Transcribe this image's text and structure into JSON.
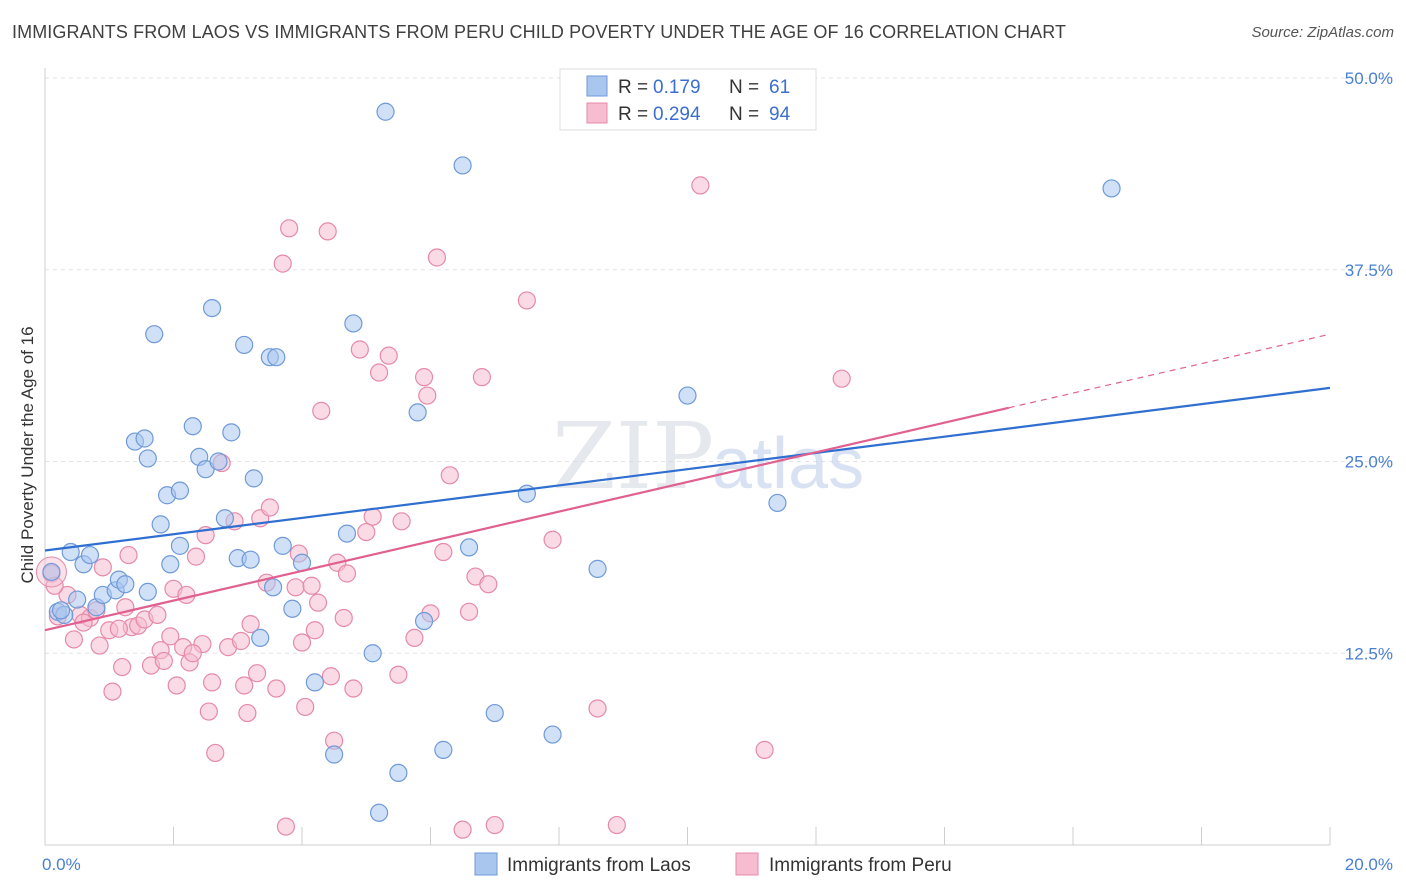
{
  "title": "IMMIGRANTS FROM LAOS VS IMMIGRANTS FROM PERU CHILD POVERTY UNDER THE AGE OF 16 CORRELATION CHART",
  "source": "Source: ZipAtlas.com",
  "watermark": {
    "a": "ZIP",
    "b": "atlas"
  },
  "colors": {
    "laos_fill": "#a9c6ef",
    "laos_stroke": "#6f9ad8",
    "laos_line": "#2f6fd0",
    "peru_fill": "#f6bcd0",
    "peru_stroke": "#e58aa9",
    "peru_line": "#e0608f",
    "grid": "#e3e3e3",
    "axis_text": "#4a7fd1"
  },
  "legend": {
    "laos": {
      "r_label": "R =",
      "r_value": "0.179",
      "n_label": "N =",
      "n_value": "61"
    },
    "peru": {
      "r_label": "R =",
      "r_value": "0.294",
      "n_label": "N =",
      "n_value": "94"
    }
  },
  "chart_data": {
    "type": "scatter",
    "xlabel": "",
    "ylabel": "Child Poverty Under the Age of 16",
    "xlim": [
      0,
      20
    ],
    "ylim": [
      0,
      50
    ],
    "x_tick_labels": [
      {
        "value": 0,
        "label": "0.0%"
      },
      {
        "value": 20,
        "label": "20.0%"
      }
    ],
    "y_tick_labels": [
      {
        "value": 12.5,
        "label": "12.5%"
      },
      {
        "value": 25,
        "label": "25.0%"
      },
      {
        "value": 37.5,
        "label": "37.5%"
      },
      {
        "value": 50,
        "label": "50.0%"
      }
    ],
    "legend_position": "top-center",
    "grid": true,
    "series": [
      {
        "name": "Immigrants from Laos",
        "trend": {
          "x0": 0,
          "y0": 19.2,
          "x1": 20,
          "y1": 29.8
        },
        "points": [
          [
            0.1,
            17.8
          ],
          [
            0.2,
            15.2
          ],
          [
            0.3,
            15.0
          ],
          [
            0.4,
            19.1
          ],
          [
            0.5,
            16.0
          ],
          [
            0.6,
            18.3
          ],
          [
            0.7,
            18.9
          ],
          [
            0.8,
            15.5
          ],
          [
            0.9,
            16.3
          ],
          [
            1.1,
            16.6
          ],
          [
            1.15,
            17.3
          ],
          [
            1.25,
            17.0
          ],
          [
            1.4,
            26.3
          ],
          [
            1.55,
            26.5
          ],
          [
            1.6,
            25.2
          ],
          [
            1.6,
            16.5
          ],
          [
            1.7,
            33.3
          ],
          [
            1.8,
            20.9
          ],
          [
            1.9,
            22.8
          ],
          [
            1.95,
            18.3
          ],
          [
            2.1,
            23.1
          ],
          [
            2.1,
            19.5
          ],
          [
            2.3,
            27.3
          ],
          [
            2.4,
            25.3
          ],
          [
            2.5,
            24.5
          ],
          [
            2.6,
            35.0
          ],
          [
            2.7,
            25.0
          ],
          [
            2.8,
            21.3
          ],
          [
            2.9,
            26.9
          ],
          [
            3.0,
            18.7
          ],
          [
            3.1,
            32.6
          ],
          [
            3.2,
            18.6
          ],
          [
            3.25,
            23.9
          ],
          [
            3.35,
            13.5
          ],
          [
            3.5,
            31.8
          ],
          [
            3.55,
            16.8
          ],
          [
            3.6,
            31.8
          ],
          [
            3.7,
            19.5
          ],
          [
            3.85,
            15.4
          ],
          [
            4.0,
            18.4
          ],
          [
            4.2,
            10.6
          ],
          [
            4.5,
            5.9
          ],
          [
            4.7,
            20.3
          ],
          [
            4.8,
            34.0
          ],
          [
            5.1,
            12.5
          ],
          [
            5.2,
            2.1
          ],
          [
            5.3,
            47.8
          ],
          [
            5.5,
            4.7
          ],
          [
            5.8,
            28.2
          ],
          [
            5.9,
            14.6
          ],
          [
            6.2,
            6.2
          ],
          [
            6.5,
            44.3
          ],
          [
            6.6,
            19.4
          ],
          [
            7.0,
            8.6
          ],
          [
            7.5,
            22.9
          ],
          [
            7.9,
            7.2
          ],
          [
            8.6,
            18.0
          ],
          [
            10.0,
            29.3
          ],
          [
            11.4,
            22.3
          ],
          [
            16.6,
            42.8
          ],
          [
            0.25,
            15.3
          ]
        ]
      },
      {
        "name": "Immigrants from Peru",
        "trend": {
          "x0": 0,
          "y0": 14.0,
          "x1": 15.0,
          "y1": 28.5,
          "dash_x1": 20,
          "dash_y1": 33.3
        },
        "points": [
          [
            0.1,
            17.7
          ],
          [
            0.2,
            14.9
          ],
          [
            0.35,
            16.3
          ],
          [
            0.45,
            13.4
          ],
          [
            0.55,
            15.0
          ],
          [
            0.7,
            14.8
          ],
          [
            0.8,
            15.3
          ],
          [
            0.85,
            13.0
          ],
          [
            0.9,
            18.1
          ],
          [
            1.0,
            14.0
          ],
          [
            1.05,
            10.0
          ],
          [
            1.2,
            11.6
          ],
          [
            1.25,
            15.5
          ],
          [
            1.3,
            18.9
          ],
          [
            1.35,
            14.2
          ],
          [
            1.45,
            14.3
          ],
          [
            1.55,
            14.7
          ],
          [
            1.65,
            11.7
          ],
          [
            1.75,
            15.0
          ],
          [
            1.8,
            12.7
          ],
          [
            1.85,
            12.0
          ],
          [
            1.95,
            13.6
          ],
          [
            2.0,
            16.7
          ],
          [
            2.05,
            10.4
          ],
          [
            2.15,
            12.9
          ],
          [
            2.2,
            16.3
          ],
          [
            2.25,
            11.9
          ],
          [
            2.35,
            18.8
          ],
          [
            2.45,
            13.1
          ],
          [
            2.5,
            20.2
          ],
          [
            2.55,
            8.7
          ],
          [
            2.6,
            10.6
          ],
          [
            2.65,
            6.0
          ],
          [
            2.75,
            24.9
          ],
          [
            2.85,
            12.9
          ],
          [
            2.95,
            21.1
          ],
          [
            3.05,
            13.3
          ],
          [
            3.1,
            10.4
          ],
          [
            3.15,
            8.6
          ],
          [
            3.2,
            14.4
          ],
          [
            3.3,
            11.2
          ],
          [
            3.35,
            21.3
          ],
          [
            3.45,
            17.1
          ],
          [
            3.5,
            22.0
          ],
          [
            3.6,
            10.2
          ],
          [
            3.7,
            37.9
          ],
          [
            3.75,
            1.2
          ],
          [
            3.8,
            40.2
          ],
          [
            3.9,
            16.8
          ],
          [
            4.0,
            13.2
          ],
          [
            4.05,
            9.0
          ],
          [
            4.15,
            16.9
          ],
          [
            4.2,
            14.0
          ],
          [
            4.25,
            15.8
          ],
          [
            4.3,
            28.3
          ],
          [
            4.4,
            40.0
          ],
          [
            4.45,
            11.0
          ],
          [
            4.5,
            6.8
          ],
          [
            4.55,
            18.4
          ],
          [
            4.7,
            17.7
          ],
          [
            4.8,
            10.2
          ],
          [
            4.9,
            32.3
          ],
          [
            5.0,
            20.4
          ],
          [
            5.1,
            21.4
          ],
          [
            5.2,
            30.8
          ],
          [
            5.35,
            31.9
          ],
          [
            5.5,
            11.1
          ],
          [
            5.55,
            21.1
          ],
          [
            5.9,
            30.5
          ],
          [
            5.95,
            29.3
          ],
          [
            6.0,
            15.1
          ],
          [
            6.1,
            38.3
          ],
          [
            6.2,
            19.1
          ],
          [
            6.3,
            24.1
          ],
          [
            6.5,
            1.0
          ],
          [
            6.6,
            15.2
          ],
          [
            6.7,
            17.5
          ],
          [
            6.8,
            30.5
          ],
          [
            6.9,
            17.0
          ],
          [
            7.0,
            1.3
          ],
          [
            7.5,
            35.5
          ],
          [
            7.9,
            19.9
          ],
          [
            8.6,
            8.9
          ],
          [
            8.9,
            1.3
          ],
          [
            10.2,
            43.0
          ],
          [
            11.2,
            6.2
          ],
          [
            12.4,
            30.4
          ],
          [
            0.6,
            14.5
          ],
          [
            1.15,
            14.1
          ],
          [
            2.3,
            12.5
          ],
          [
            3.95,
            19.0
          ],
          [
            4.65,
            14.8
          ],
          [
            5.75,
            13.5
          ],
          [
            0.15,
            16.9
          ]
        ]
      }
    ]
  }
}
